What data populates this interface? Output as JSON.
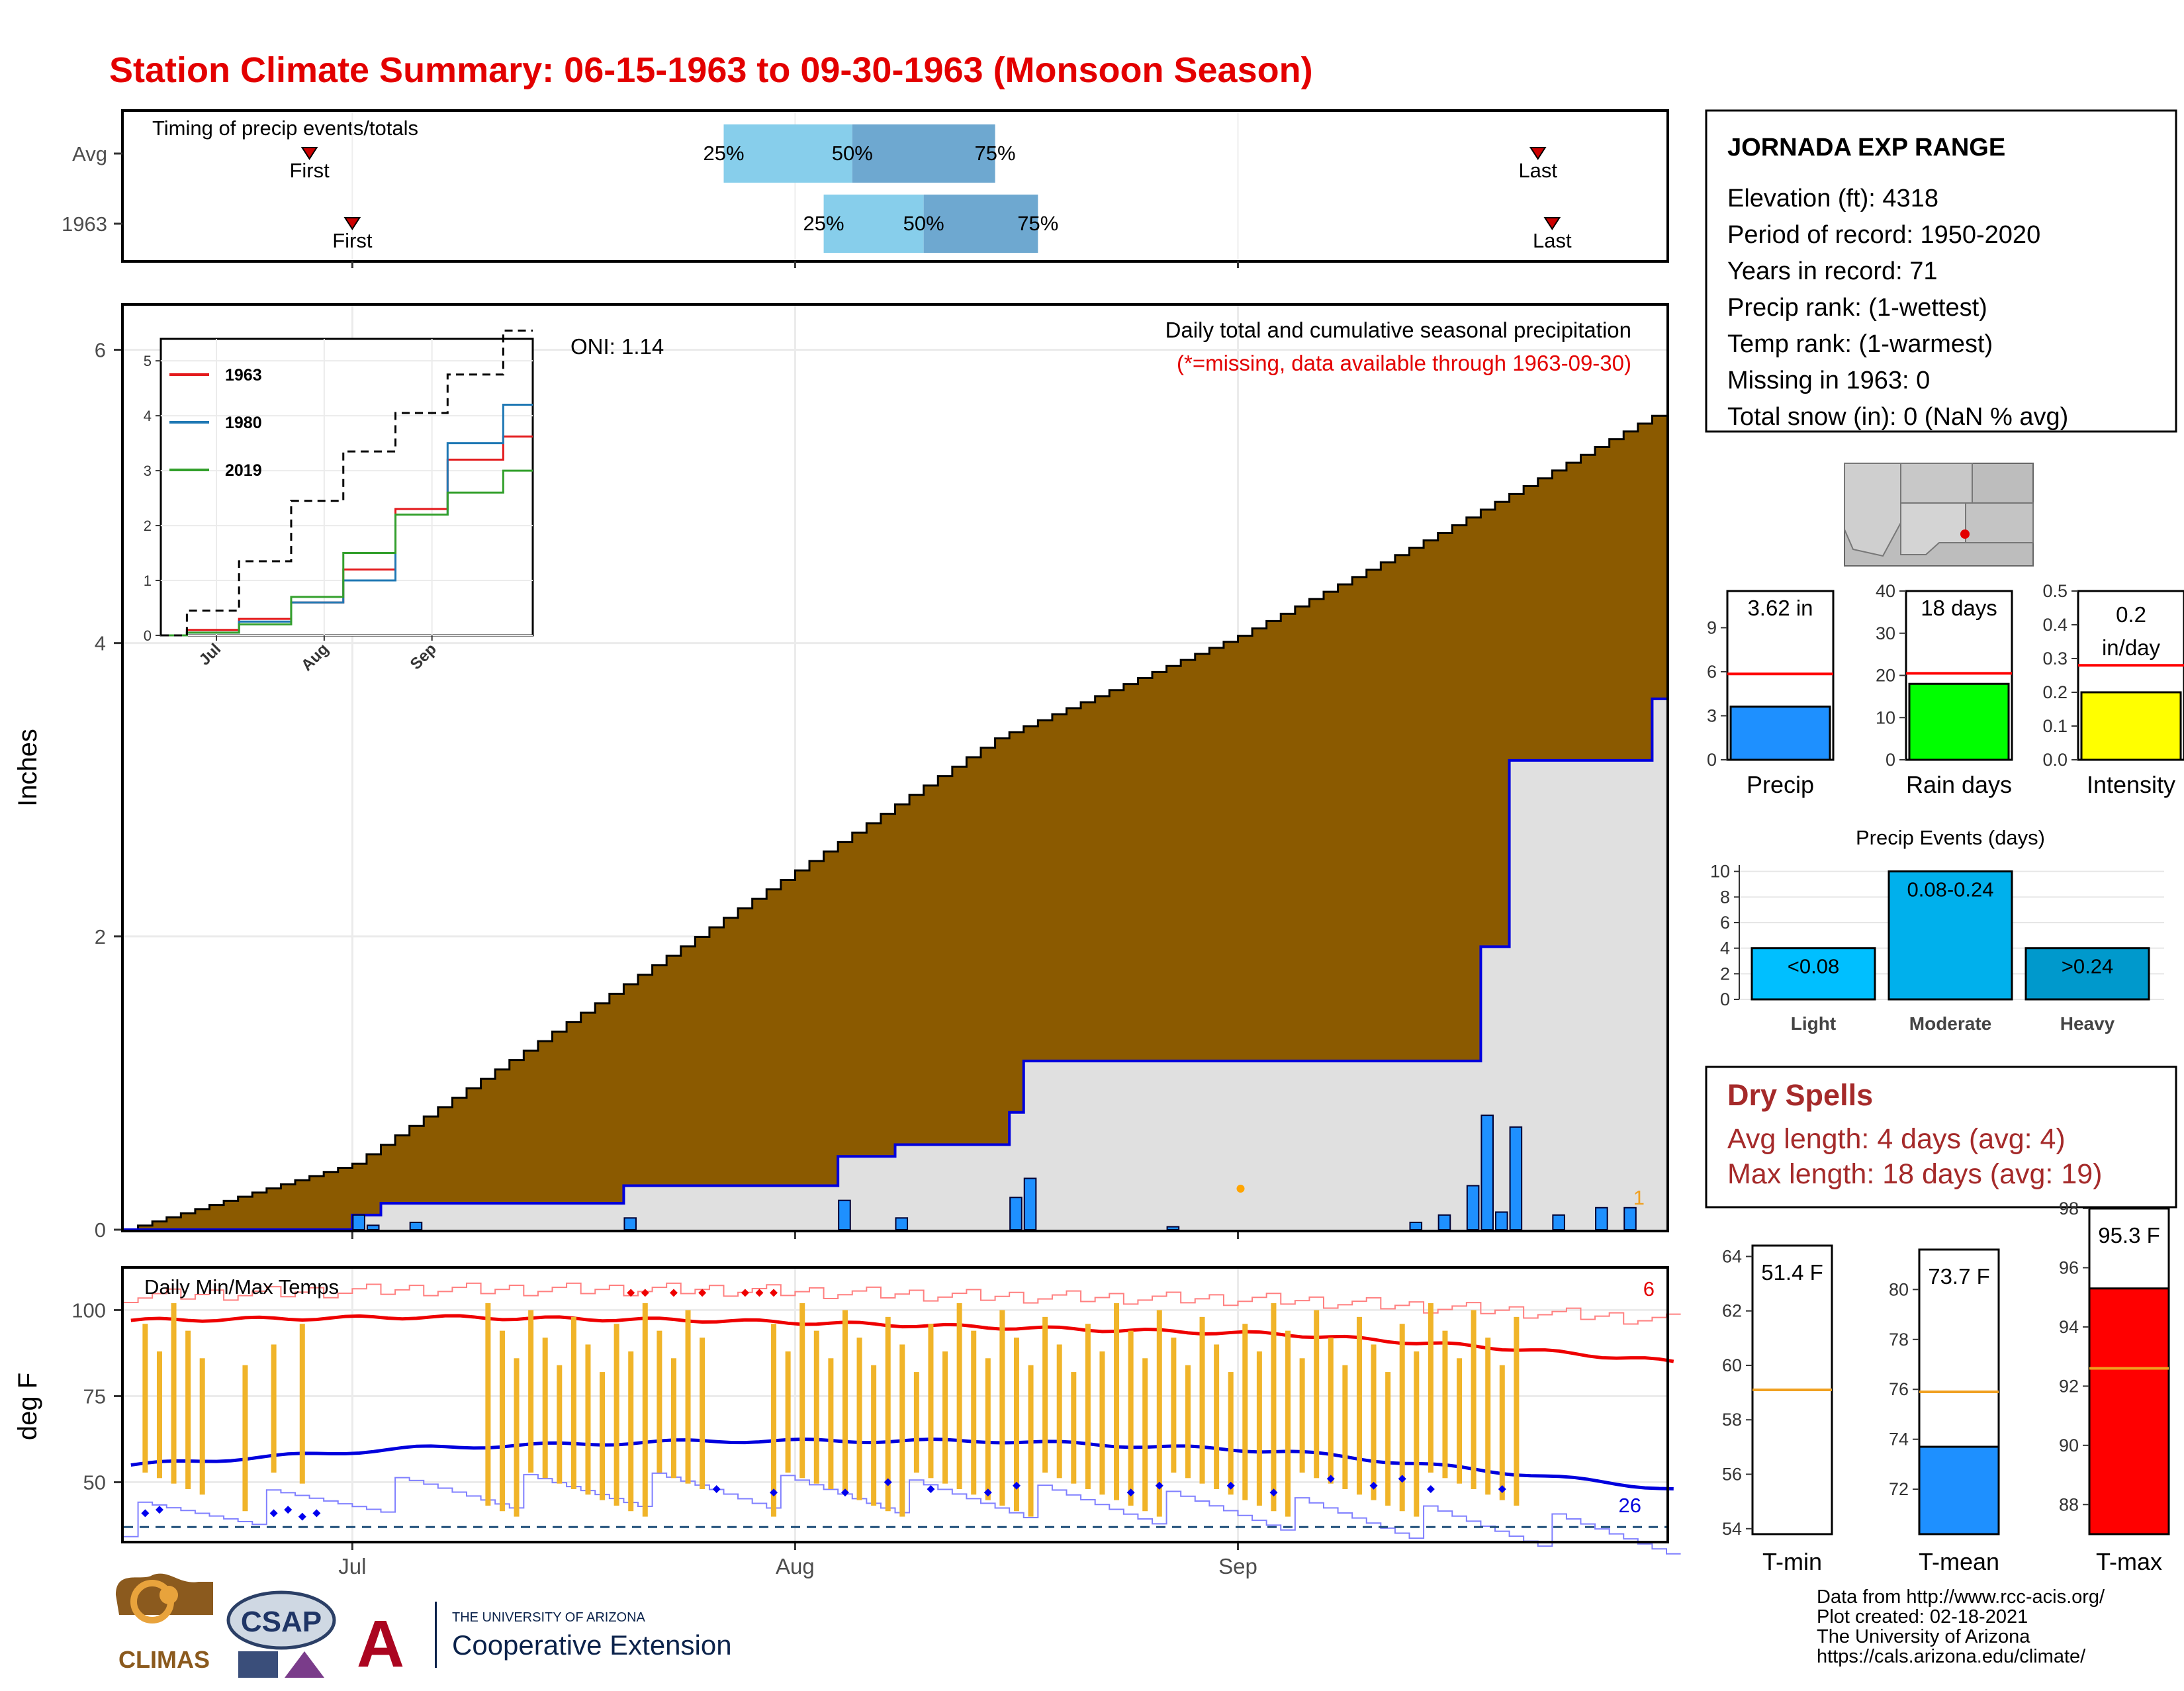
{
  "title": "Station Climate Summary: 06-15-1963 to 09-30-1963 (Monsoon Season)",
  "colors": {
    "title_red": "#e30000",
    "brown": "#8b5a00",
    "light_blue": "#87ceeb",
    "mid_blue": "#6ea8d0",
    "precip_blue": "#1e90ff",
    "gold": "#f0b429",
    "dry_spell_text": "#a52a2a"
  },
  "timing": {
    "label": "Timing of precip events/totals",
    "rows": [
      {
        "name": "Avg",
        "first_label": "First",
        "last_label": "Last",
        "first": "2025-06-28",
        "q25": "2025-07-27",
        "q50": "2025-08-05",
        "q75": "2025-08-15",
        "last": "2025-09-22",
        "p25": "25%",
        "p50": "50%",
        "p75": "75%"
      },
      {
        "name": "1963",
        "first_label": "First",
        "last_label": "Last",
        "first": "2025-07-01",
        "q25": "2025-08-03",
        "q50": "2025-08-10",
        "q75": "2025-08-18",
        "last": "2025-09-23",
        "p25": "25%",
        "p50": "50%",
        "p75": "75%"
      }
    ]
  },
  "precip_panel": {
    "ylabel": "Inches",
    "oni": "ONI: 1.14",
    "note1": "Daily total and cumulative seasonal precipitation",
    "note2": "(*=missing, data available through 1963-09-30)",
    "corner_count": "1",
    "x_ticks": [
      "Jul",
      "Aug",
      "Sep"
    ],
    "y_ticks": [
      "0",
      "2",
      "4",
      "6"
    ]
  },
  "inset": {
    "legend": [
      "1963",
      "1980",
      "2019"
    ],
    "x_ticks": [
      "Jul",
      "Aug",
      "Sep"
    ],
    "y_ticks": [
      "0",
      "1",
      "2",
      "3",
      "4",
      "5"
    ]
  },
  "temp_panel": {
    "label": "Daily Min/Max Temps",
    "ylabel": "deg F",
    "y_ticks": [
      "50",
      "75",
      "100"
    ],
    "count_max": "6",
    "count_min": "26",
    "x_ticks": [
      "Jul",
      "Aug",
      "Sep"
    ]
  },
  "station": {
    "name": "JORNADA EXP RANGE",
    "lines": [
      "Elevation (ft): 4318",
      "Period of record: 1950-2020",
      "Years in record: 71",
      "Precip rank:  (1-wettest)",
      "Temp rank:  (1-warmest)",
      "Missing in 1963: 0",
      "Total snow (in): 0 (NaN % avg)"
    ]
  },
  "mini_bars": [
    {
      "label": "Precip",
      "value_text": "3.62 in",
      "value": 3.62,
      "avg": 5.85,
      "ymax": 11.5,
      "ticks": [
        "0",
        "3",
        "6",
        "9"
      ],
      "color": "#1e90ff"
    },
    {
      "label": "Rain days",
      "value_text": "18 days",
      "value": 18,
      "avg": 20.5,
      "ymax": 40,
      "ticks": [
        "0",
        "10",
        "20",
        "30",
        "40"
      ],
      "color": "#00ff00"
    },
    {
      "label": "Intensity",
      "value_text": "0.2 in/day",
      "value": 0.2,
      "avg": 0.28,
      "ymax": 0.5,
      "ticks": [
        "0.0",
        "0.1",
        "0.2",
        "0.3",
        "0.4",
        "0.5"
      ],
      "color": "#ffff00"
    }
  ],
  "precip_events": {
    "title": "Precip Events (days)",
    "categories": [
      "Light",
      "Moderate",
      "Heavy"
    ],
    "bar_labels": [
      "<0.08",
      "0.08-0.24",
      ">0.24"
    ],
    "values": [
      4,
      10,
      4
    ],
    "colors": [
      "#00bfff",
      "#00b0ec",
      "#0099cc"
    ],
    "y_ticks": [
      "0",
      "2",
      "4",
      "6",
      "8",
      "10"
    ]
  },
  "dry_spells": {
    "title": "Dry Spells",
    "avg_line": "Avg length: 4 days (avg: 4)",
    "max_line": "Max length: 18 days (avg: 19)"
  },
  "temp_bars": [
    {
      "label": "T-min",
      "value_text": "51.4 F",
      "value": 51.4,
      "avg": 59.1,
      "ymin": 53.8,
      "ymax": 64.4,
      "ticks": [
        "54",
        "56",
        "58",
        "60",
        "62",
        "64"
      ],
      "color": "#1e90ff"
    },
    {
      "label": "T-mean",
      "value_text": "73.7 F",
      "value": 73.7,
      "avg": 75.9,
      "ymin": 70.2,
      "ymax": 81.6,
      "ticks": [
        "72",
        "74",
        "76",
        "78",
        "80"
      ],
      "color": "#1e90ff"
    },
    {
      "label": "T-max",
      "value_text": "95.3 F",
      "value": 95.3,
      "avg": 92.6,
      "ymin": 87.0,
      "ymax": 98.0,
      "ticks": [
        "88",
        "90",
        "92",
        "94",
        "96",
        "98"
      ],
      "color": "#ff0000"
    }
  ],
  "footer": {
    "lines": [
      "Data from http://www.rcc-acis.org/",
      "Plot created: 02-18-2021",
      "The University of Arizona",
      "https://cals.arizona.edu/climate/"
    ],
    "logo_climas": "CLIMAS",
    "logo_csap": "CSAP",
    "logo_ua_small": "THE UNIVERSITY OF ARIZONA",
    "logo_ua_big": "Cooperative Extension"
  },
  "chart_data": [
    {
      "type": "bar",
      "title": "Daily total and cumulative seasonal precipitation",
      "ylabel": "Inches",
      "ylim": [
        0,
        6
      ],
      "x_range": [
        "1963-06-15",
        "1963-09-30"
      ],
      "daily_precip_1963": [
        {
          "date": "1963-07-01",
          "in": 0.1
        },
        {
          "date": "1963-07-02",
          "in": 0.03
        },
        {
          "date": "1963-07-05",
          "in": 0.05
        },
        {
          "date": "1963-07-20",
          "in": 0.08
        },
        {
          "date": "1963-08-04",
          "in": 0.2
        },
        {
          "date": "1963-08-08",
          "in": 0.08
        },
        {
          "date": "1963-08-16",
          "in": 0.22
        },
        {
          "date": "1963-08-17",
          "in": 0.35
        },
        {
          "date": "1963-08-27",
          "in": 0.02
        },
        {
          "date": "1963-09-18",
          "in": 0.78
        },
        {
          "date": "1963-09-19",
          "in": 0.12
        },
        {
          "date": "1963-09-13",
          "in": 0.05
        },
        {
          "date": "1963-09-15",
          "in": 0.1
        },
        {
          "date": "1963-09-17",
          "in": 0.3
        },
        {
          "date": "1963-09-20",
          "in": 0.7
        },
        {
          "date": "1963-09-23",
          "in": 0.1
        },
        {
          "date": "1963-09-26",
          "in": 0.15
        },
        {
          "date": "1963-09-28",
          "in": 0.15
        }
      ],
      "series": [
        {
          "name": "Avg cumulative",
          "x": [
            "1963-06-15",
            "1963-07-01",
            "1963-07-15",
            "1963-08-01",
            "1963-08-15",
            "1963-09-01",
            "1963-09-15",
            "1963-09-30"
          ],
          "values": [
            0.0,
            0.45,
            1.35,
            2.45,
            3.35,
            4.05,
            4.75,
            5.55
          ]
        },
        {
          "name": "1963 cumulative",
          "x": [
            "1963-06-15",
            "1963-07-01",
            "1963-07-03",
            "1963-07-20",
            "1963-08-04",
            "1963-08-08",
            "1963-08-16",
            "1963-08-17",
            "1963-09-18",
            "1963-09-20",
            "1963-09-30"
          ],
          "values": [
            0.0,
            0.1,
            0.18,
            0.3,
            0.5,
            0.58,
            0.8,
            1.15,
            1.93,
            3.2,
            3.62
          ]
        }
      ]
    },
    {
      "type": "line",
      "title": "",
      "ylim": [
        0,
        5.4
      ],
      "categories": [
        "Jul",
        "Aug",
        "Sep"
      ],
      "series": [
        {
          "name": "1963",
          "x": [
            0,
            15,
            30,
            45,
            60,
            75,
            90,
            107
          ],
          "values": [
            0,
            0.1,
            0.3,
            0.6,
            1.2,
            2.3,
            3.2,
            3.62
          ]
        },
        {
          "name": "1980",
          "x": [
            0,
            15,
            30,
            45,
            60,
            75,
            90,
            107
          ],
          "values": [
            0,
            0.05,
            0.25,
            0.6,
            1.0,
            2.2,
            3.5,
            4.2
          ]
        },
        {
          "name": "2019",
          "x": [
            0,
            15,
            30,
            45,
            60,
            75,
            90,
            107
          ],
          "values": [
            0,
            0.05,
            0.2,
            0.7,
            1.5,
            2.2,
            2.6,
            3.0
          ]
        },
        {
          "name": "avg",
          "x": [
            0,
            15,
            30,
            45,
            60,
            75,
            90,
            107
          ],
          "values": [
            0,
            0.45,
            1.35,
            2.45,
            3.35,
            4.05,
            4.75,
            5.55
          ]
        }
      ]
    },
    {
      "type": "line",
      "title": "Daily Min/Max Temps",
      "ylabel": "deg F",
      "ylim": [
        33,
        112
      ],
      "series": [
        {
          "name": "Avg max",
          "x": [
            0,
            20,
            40,
            60,
            80,
            95,
            107
          ],
          "values": [
            97,
            98,
            97,
            95,
            93,
            89,
            85
          ]
        },
        {
          "name": "Avg min",
          "x": [
            0,
            20,
            40,
            60,
            80,
            95,
            107
          ],
          "values": [
            55,
            60,
            62,
            62,
            59,
            53,
            48
          ]
        },
        {
          "name": "Record high",
          "x": [
            0,
            20,
            40,
            60,
            80,
            95,
            107
          ],
          "values": [
            104,
            106,
            106,
            104,
            103,
            100,
            97
          ]
        },
        {
          "name": "Record low",
          "x": [
            0,
            20,
            40,
            60,
            80,
            95,
            107
          ],
          "values": [
            39,
            47,
            48,
            45,
            41,
            37,
            34
          ]
        }
      ],
      "daily_range_1963": {
        "max_range": [
          82,
          104
        ],
        "min_range": [
          40,
          56
        ]
      }
    }
  ]
}
